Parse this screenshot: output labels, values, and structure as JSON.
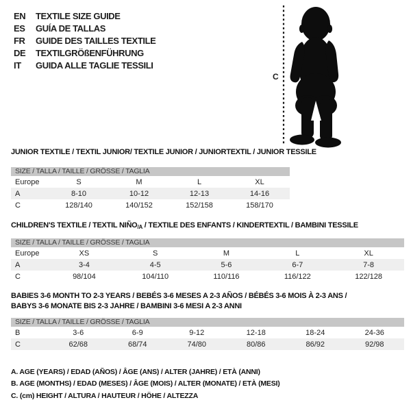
{
  "language_list": {
    "items": [
      {
        "code": "EN",
        "label": "TEXTILE SIZE GUIDE"
      },
      {
        "code": "ES",
        "label": "GUÍA DE TALLAS"
      },
      {
        "code": "FR",
        "label": "GUIDE DES TAILLES TEXTILE"
      },
      {
        "code": "DE",
        "label": "TEXTILGRÖßENFÜHRUNG"
      },
      {
        "code": "IT",
        "label": "GUIDA ALLE TAGLIE TESSILI"
      }
    ]
  },
  "figure": {
    "height_marker_label": "C",
    "description": "black toddler silhouette with dotted height line"
  },
  "tables": [
    {
      "title": "JUNIOR TEXTILE / TEXTIL JUNIOR/ TEXTILE JUNIOR / JUNIORTEXTIL / JUNIOR TESSILE",
      "header": "SIZE / TALLA / TAILLE / GRÖSSE / TAGLIA",
      "rows": [
        {
          "label": "Europe",
          "shaded": false,
          "cells": [
            "S",
            "M",
            "L",
            "XL"
          ]
        },
        {
          "label": "A",
          "shaded": true,
          "cells": [
            "8-10",
            "10-12",
            "12-13",
            "14-16"
          ]
        },
        {
          "label": "C",
          "shaded": false,
          "cells": [
            "128/140",
            "140/152",
            "152/158",
            "158/170"
          ]
        }
      ]
    },
    {
      "title_pre": "CHILDREN'S TEXTILE / TEXTIL NIÑO",
      "title_sub": "/A",
      "title_post": " / TEXTILE DES ENFANTS / KINDERTEXTIL / BAMBINI TESSILE",
      "header": "SIZE / TALLA / TAILLE / GRÖSSE / TAGLIA",
      "rows": [
        {
          "label": "Europe",
          "shaded": false,
          "cells": [
            "XS",
            "S",
            "M",
            "L",
            "XL"
          ]
        },
        {
          "label": "A",
          "shaded": true,
          "cells": [
            "3-4",
            "4-5",
            "5-6",
            "6-7",
            "7-8"
          ]
        },
        {
          "label": "C",
          "shaded": false,
          "cells": [
            "98/104",
            "104/110",
            "110/116",
            "116/122",
            "122/128"
          ]
        }
      ]
    },
    {
      "title_line1": "BABIES 3-6 MONTH TO 2-3 YEARS / BEBÉS 3-6 MESES A 2-3 AÑOS / BÉBÉS 3-6 MOIS À 2-3 ANS /",
      "title_line2": "BABYS 3-6 MONATE BIS 2-3 JAHRE / BAMBINI 3-6 MESI A 2-3 ANNI",
      "header": "SIZE / TALLA / TAILLE / GRÖSSE / TAGLIA",
      "rows": [
        {
          "label": "B",
          "shaded": false,
          "cells": [
            "3-6",
            "6-9",
            "9-12",
            "12-18",
            "18-24",
            "24-36"
          ]
        },
        {
          "label": "C",
          "shaded": true,
          "cells": [
            "62/68",
            "68/74",
            "74/80",
            "80/86",
            "86/92",
            "92/98"
          ]
        }
      ]
    }
  ],
  "legend": {
    "lines": [
      "A. AGE (YEARS) / EDAD (AÑOS) / ÂGE (ANS) / ALTER (JAHRE) / ETÀ (ANNI)",
      "B. AGE (MONTHS) / EDAD (MESES) / ÂGE (MOIS) / ALTER (MONATE) / ETÀ (MESI)",
      "C. (cm) HEIGHT / ALTURA / HAUTEUR / HÖHE / ALTEZZA"
    ]
  },
  "colors": {
    "header_bar": "#c6c6c6",
    "row_shaded": "#efefef",
    "text": "#1d1d1d",
    "silhouette": "#0d0d0d"
  }
}
